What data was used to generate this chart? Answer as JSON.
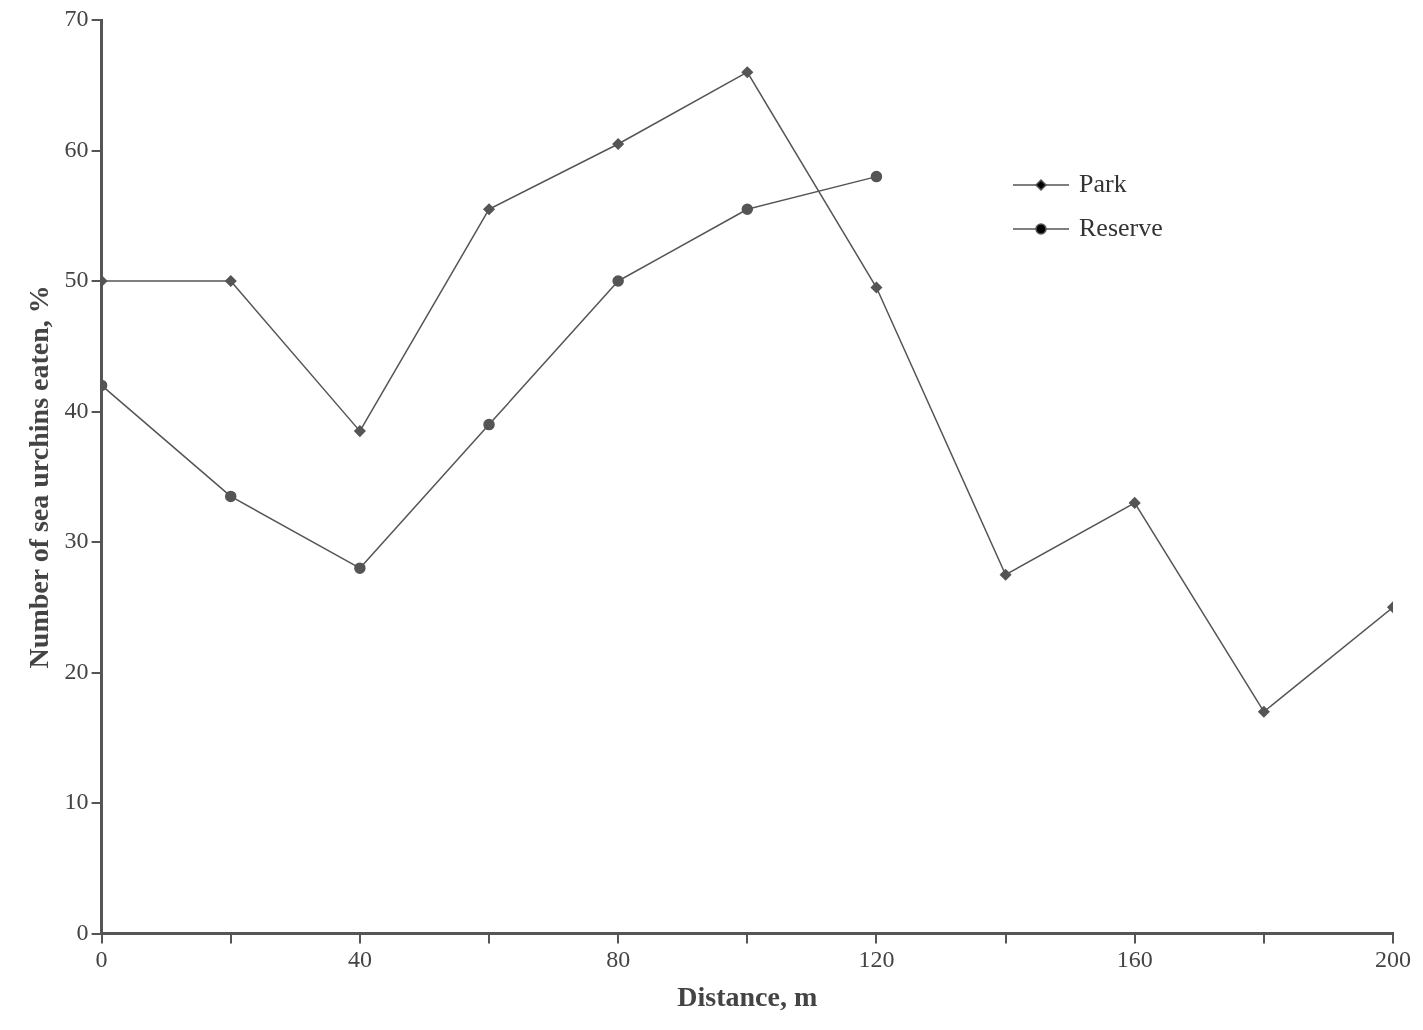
{
  "chart_data": {
    "type": "line",
    "xlabel": "Distance, m",
    "ylabel": "Number of sea urchins eaten, %",
    "xlim": [
      0,
      200
    ],
    "ylim": [
      0,
      70
    ],
    "xticks": [
      0,
      {
        "value": 20,
        "label": null
      },
      40,
      {
        "value": 60,
        "label": null
      },
      80,
      {
        "value": 100,
        "label": null
      },
      120,
      {
        "value": 140,
        "label": null
      },
      160,
      {
        "value": 180,
        "label": null
      },
      200
    ],
    "yticks": [
      0,
      10,
      20,
      30,
      40,
      50,
      60,
      70
    ],
    "grid": false,
    "legend": "top right",
    "line_style": "solid",
    "series": [
      {
        "name": "Park",
        "color": "#555555",
        "marker": "diamond",
        "x": [
          0,
          20,
          40,
          60,
          80,
          100,
          120,
          140,
          160,
          180,
          200
        ],
        "values": [
          50,
          50,
          38.5,
          55.5,
          60.5,
          66,
          49.5,
          27.5,
          33,
          17,
          25
        ]
      },
      {
        "name": "Reserve",
        "color": "#555555",
        "marker": "circle",
        "x": [
          0,
          20,
          40,
          60,
          80,
          100,
          120
        ],
        "values": [
          42,
          33.5,
          28,
          39,
          50,
          55.5,
          58
        ]
      }
    ]
  }
}
